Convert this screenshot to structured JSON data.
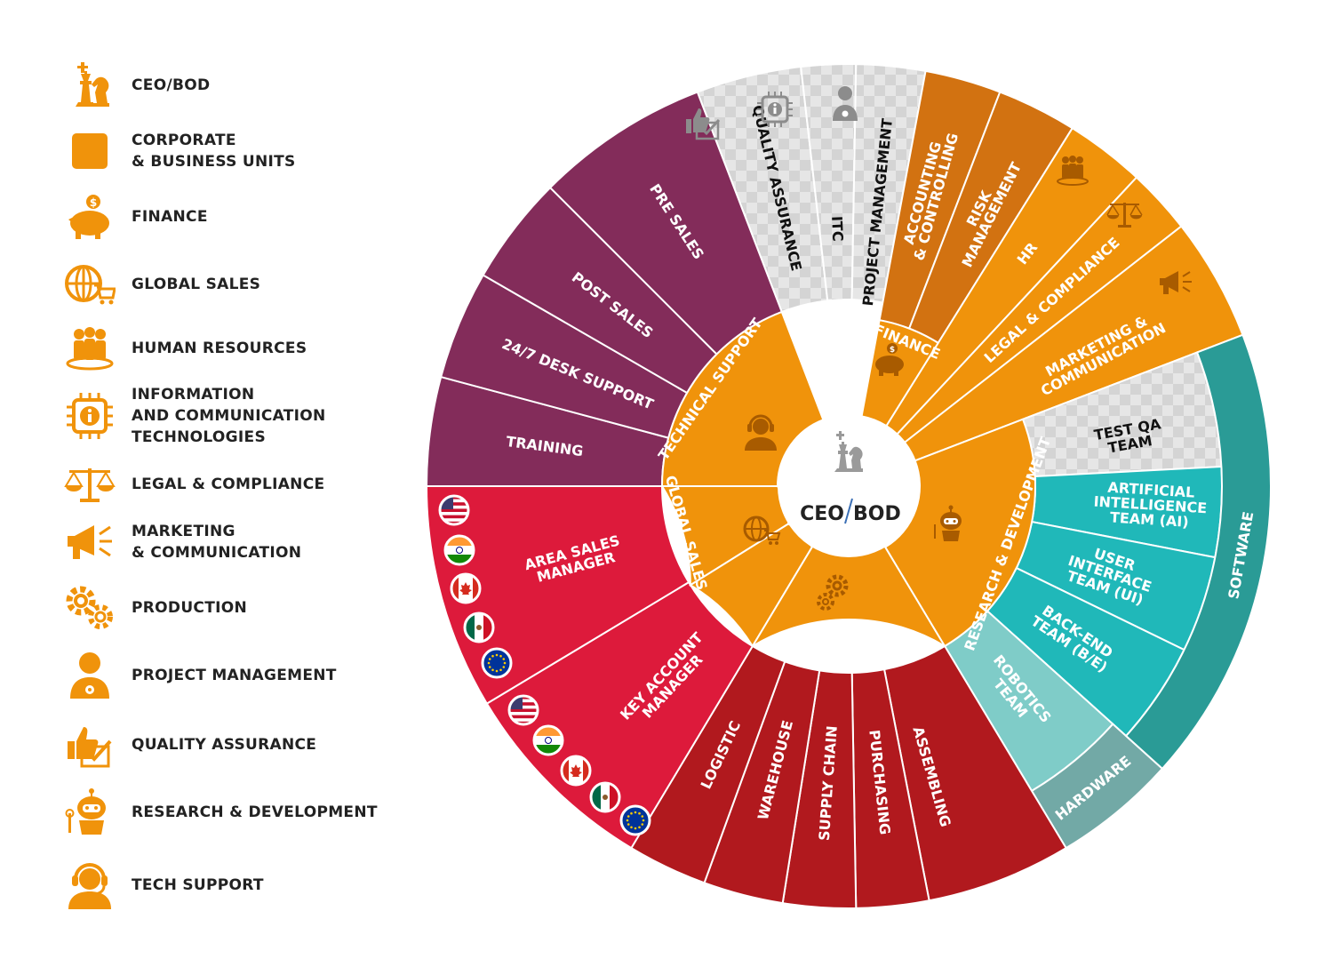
{
  "colors": {
    "orange": "#F0930B",
    "dark_orange": "#D27211",
    "crimson": "#DD1A3B",
    "dark_red": "#B1191E",
    "plum": "#832C5A",
    "teal": "#20B8B9",
    "dark_teal": "#2A9B96",
    "light_teal": "#7FCCC8",
    "grey_teal": "#72A9A6",
    "checker": "#E2E2E2",
    "ceo_text": "#222222"
  },
  "legend": [
    {
      "id": "ceo",
      "label": "CEO/BOD",
      "icon": "chess-king-knight-icon"
    },
    {
      "id": "corporate",
      "label": "CORPORATE\n& BUSINESS UNITS",
      "icon": "orange-square-icon"
    },
    {
      "id": "finance",
      "label": "FINANCE",
      "icon": "piggy-bank-icon"
    },
    {
      "id": "global-sales",
      "label": "GLOBAL SALES",
      "icon": "globe-cart-icon"
    },
    {
      "id": "hr",
      "label": "HUMAN RESOURCES",
      "icon": "people-icon"
    },
    {
      "id": "ict",
      "label": "INFORMATION\nAND COMMUNICATION\nTECHNOLOGIES",
      "icon": "chip-info-icon"
    },
    {
      "id": "legal",
      "label": "LEGAL & COMPLIANCE",
      "icon": "scales-icon"
    },
    {
      "id": "marketing",
      "label": "MARKETING\n& COMMUNICATION",
      "icon": "megaphone-icon"
    },
    {
      "id": "production",
      "label": "PRODUCTION",
      "icon": "gears-icon"
    },
    {
      "id": "pm",
      "label": "PROJECT MANAGEMENT",
      "icon": "manager-icon"
    },
    {
      "id": "qa",
      "label": "QUALITY ASSURANCE",
      "icon": "thumbs-up-check-icon"
    },
    {
      "id": "rnd",
      "label": "RESEARCH & DEVELOPMENT",
      "icon": "robot-icon"
    },
    {
      "id": "tech",
      "label": "TECH SUPPORT",
      "icon": "headset-icon"
    }
  ],
  "center": {
    "ceo": "CEO",
    "bod": "BOD"
  },
  "departments": {
    "technical_support": "TECHNICAL SUPPORT",
    "global_sales": "GLOBAL SALES",
    "production": "PRODUCTION",
    "research_development": "RESEARCH & DEVELOPMENT",
    "finance": "FINANCE"
  },
  "units": {
    "quality_assurance": "QUALITY ASSURANCE",
    "itc": "ITC",
    "project_management": "PROJECT MANAGEMENT",
    "accounting": "ACCOUNTING\n& CONTROLLING",
    "risk": "RISK\nMANAGEMENT",
    "hr": "HR",
    "legal": "LEGAL & COMPLIANCE",
    "marketing": "MARKETING &\nCOMMUNICATION",
    "test_qa": "TEST QA\nTEAM",
    "ai": "ARTIFICIAL\nINTELLIGENCE\nTEAM (AI)",
    "ui": "USER\nINTERFACE\nTEAM (UI)",
    "backend": "BACK-END\nTEAM (B/E)",
    "robotics": "ROBOTICS\nTEAM",
    "software": "SOFTWARE",
    "hardware": "HARDWARE",
    "assembling": "ASSEMBLING",
    "purchasing": "PURCHASING",
    "supply_chain": "SUPPLY CHAIN",
    "warehouse": "WAREHOUSE",
    "logistic": "LOGISTIC",
    "key_account": "KEY ACCOUNT\nMANAGER",
    "area_sales": "AREA SALES\nMANAGER",
    "training": "TRAINING",
    "desk_support": "24/7 DESK SUPPORT",
    "post_sales": "POST SALES",
    "pre_sales": "PRE SALES"
  },
  "flags": [
    "us-flag-icon",
    "india-flag-icon",
    "canada-flag-icon",
    "mexico-flag-icon",
    "eu-flag-icon"
  ]
}
